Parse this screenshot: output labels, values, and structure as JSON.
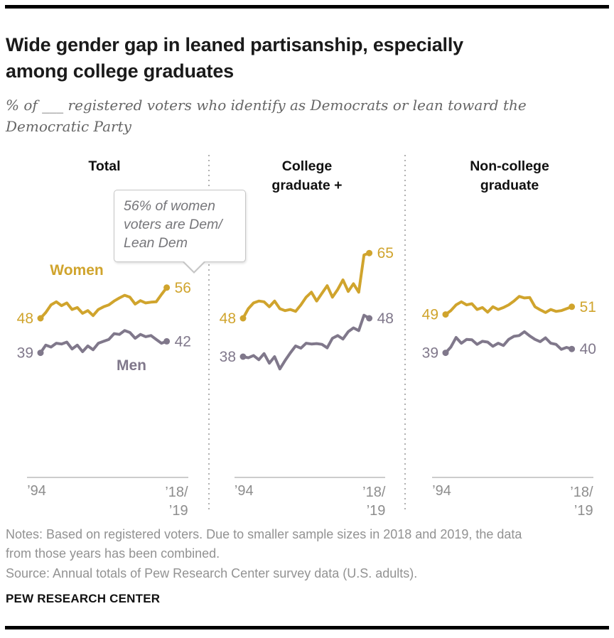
{
  "header": {
    "title_lines": [
      "Wide gender gap in leaned partisanship, especially",
      "among college graduates"
    ],
    "subtitle_lines": [
      "% of ___ registered voters who identify as Democrats or lean toward the",
      "Democratic Party"
    ]
  },
  "callout": {
    "text": "56% of women voters are Dem/ Lean Dem"
  },
  "series_labels": {
    "women": "Women",
    "men": "Men"
  },
  "axis": {
    "start_label": "’94",
    "end_label_line1": "’18/",
    "end_label_line2": "’19"
  },
  "colors": {
    "gold": "#D0A42D",
    "purple_gray": "#80788B",
    "title_black": "#1a1a1a",
    "subtitle_gray": "#666666",
    "notes_gray": "#929292",
    "axis_line": "#cccccc",
    "axis_label": "#8d8d8d",
    "separator_dots": "#b0b0b0",
    "callout_border": "#c6c6c6",
    "callout_text": "#76767a"
  },
  "chart_data": {
    "type": "line",
    "unit": "%",
    "x": [
      1994,
      1995,
      1996,
      1997,
      1998,
      1999,
      2000,
      2001,
      2002,
      2003,
      2004,
      2005,
      2006,
      2007,
      2008,
      2009,
      2010,
      2011,
      2012,
      2013,
      2014,
      2015,
      2016,
      2017,
      "2018/19"
    ],
    "ylim": [
      30,
      70
    ],
    "grid": false,
    "legend_position": "inline-first-panel",
    "panels": [
      {
        "title_lines": [
          "Total"
        ],
        "series": [
          {
            "key": "women",
            "name": "Women",
            "start_label": "48",
            "end_label": "56",
            "values": [
              48,
              49.5,
              51.5,
              52.3,
              51.3,
              52,
              50.3,
              50.8,
              49.3,
              50,
              48.7,
              50.3,
              51,
              51.5,
              52.5,
              53.3,
              54,
              53.5,
              51.7,
              52.6,
              52,
              52.2,
              52.3,
              54.2,
              56
            ]
          },
          {
            "key": "men",
            "name": "Men",
            "start_label": "39",
            "end_label": "42",
            "values": [
              39,
              41,
              40.5,
              41.5,
              41.3,
              41.8,
              40,
              41,
              39.3,
              40.8,
              39.8,
              41.5,
              42,
              42.5,
              44,
              43.8,
              44.8,
              44.3,
              42.8,
              43.8,
              43.2,
              43.5,
              42.5,
              41.5,
              42
            ]
          }
        ]
      },
      {
        "title_lines": [
          "College",
          "graduate +"
        ],
        "series": [
          {
            "key": "women",
            "name": "Women",
            "start_label": "48",
            "end_label": "65",
            "values": [
              48,
              50.5,
              52,
              52.5,
              52.3,
              51,
              52.5,
              50.5,
              50,
              50.3,
              49.8,
              51.5,
              53.5,
              54.8,
              52.5,
              54.5,
              56.5,
              53.5,
              55.5,
              58,
              55,
              57,
              54.8,
              64.5,
              65
            ]
          },
          {
            "key": "men",
            "name": "Men",
            "start_label": "38",
            "end_label": "48",
            "values": [
              38,
              37.7,
              38.3,
              37.2,
              38.8,
              36.3,
              38,
              34.8,
              37,
              39,
              40.8,
              40.2,
              41.5,
              41.3,
              41.4,
              41.2,
              40.3,
              42.8,
              43.5,
              42.6,
              44.5,
              45.5,
              44.8,
              48.8,
              48
            ]
          }
        ]
      },
      {
        "title_lines": [
          "Non-college",
          "graduate"
        ],
        "series": [
          {
            "key": "women",
            "name": "Women",
            "start_label": "49",
            "end_label": "51",
            "values": [
              49,
              50,
              51.5,
              52.3,
              51.5,
              51.8,
              50.3,
              50.8,
              49.6,
              51,
              50.3,
              50.8,
              51.5,
              52.5,
              53.7,
              53.3,
              53.4,
              51,
              50.2,
              49.5,
              50.3,
              49.8,
              50,
              50.5,
              51
            ]
          },
          {
            "key": "men",
            "name": "Men",
            "start_label": "39",
            "end_label": "40",
            "values": [
              39,
              40.5,
              43,
              41.5,
              42.5,
              42.4,
              41.2,
              42,
              41.8,
              40.7,
              41.5,
              40.9,
              42.5,
              43.3,
              43.5,
              44.5,
              43.4,
              42.5,
              41.9,
              42.9,
              41.5,
              41.2,
              39.9,
              40.4,
              40
            ]
          }
        ]
      }
    ]
  },
  "footer": {
    "notes_lines": [
      "Notes: Based on registered voters. Due to smaller sample sizes in 2018 and 2019, the data",
      "from those years has been combined."
    ],
    "source": "Source: Annual totals of Pew Research Center survey data (U.S. adults).",
    "brand": "PEW RESEARCH CENTER"
  }
}
